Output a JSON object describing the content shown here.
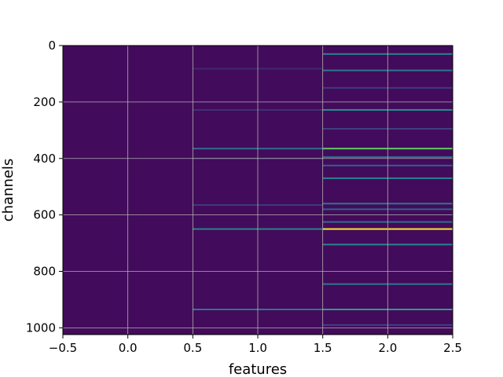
{
  "chart_data": {
    "type": "heatmap",
    "xlabel": "features",
    "ylabel": "channels",
    "colormap": "viridis",
    "x_columns": [
      0,
      1,
      2
    ],
    "xlim": [
      -0.5,
      2.5
    ],
    "ylim": [
      1024,
      0
    ],
    "grid": true,
    "x_ticks": [
      -0.5,
      0.0,
      0.5,
      1.0,
      1.5,
      2.0,
      2.5
    ],
    "x_tick_labels": [
      "−0.5",
      "0.0",
      "0.5",
      "1.0",
      "1.5",
      "2.0",
      "2.5"
    ],
    "y_ticks": [
      0,
      200,
      400,
      600,
      800,
      1000
    ],
    "y_tick_labels": [
      "0",
      "200",
      "400",
      "600",
      "800",
      "1000"
    ],
    "background_value": 0.03,
    "highlighted_rows": [
      {
        "column": 1,
        "channel": 82,
        "value": 0.12
      },
      {
        "column": 1,
        "channel": 228,
        "value": 0.15
      },
      {
        "column": 1,
        "channel": 365,
        "value": 0.35
      },
      {
        "column": 1,
        "channel": 400,
        "value": 0.12
      },
      {
        "column": 1,
        "channel": 565,
        "value": 0.18
      },
      {
        "column": 1,
        "channel": 650,
        "value": 0.45
      },
      {
        "column": 1,
        "channel": 935,
        "value": 0.4
      },
      {
        "column": 2,
        "channel": 30,
        "value": 0.45
      },
      {
        "column": 2,
        "channel": 88,
        "value": 0.4
      },
      {
        "column": 2,
        "channel": 150,
        "value": 0.18
      },
      {
        "column": 2,
        "channel": 228,
        "value": 0.5
      },
      {
        "column": 2,
        "channel": 295,
        "value": 0.2
      },
      {
        "column": 2,
        "channel": 365,
        "value": 0.75
      },
      {
        "column": 2,
        "channel": 395,
        "value": 0.35
      },
      {
        "column": 2,
        "channel": 425,
        "value": 0.3
      },
      {
        "column": 2,
        "channel": 470,
        "value": 0.45
      },
      {
        "column": 2,
        "channel": 560,
        "value": 0.4
      },
      {
        "column": 2,
        "channel": 580,
        "value": 0.3
      },
      {
        "column": 2,
        "channel": 625,
        "value": 0.35
      },
      {
        "column": 2,
        "channel": 650,
        "value": 1.0
      },
      {
        "column": 2,
        "channel": 705,
        "value": 0.45
      },
      {
        "column": 2,
        "channel": 845,
        "value": 0.4
      },
      {
        "column": 2,
        "channel": 935,
        "value": 0.55
      },
      {
        "column": 2,
        "channel": 990,
        "value": 0.2
      }
    ]
  }
}
